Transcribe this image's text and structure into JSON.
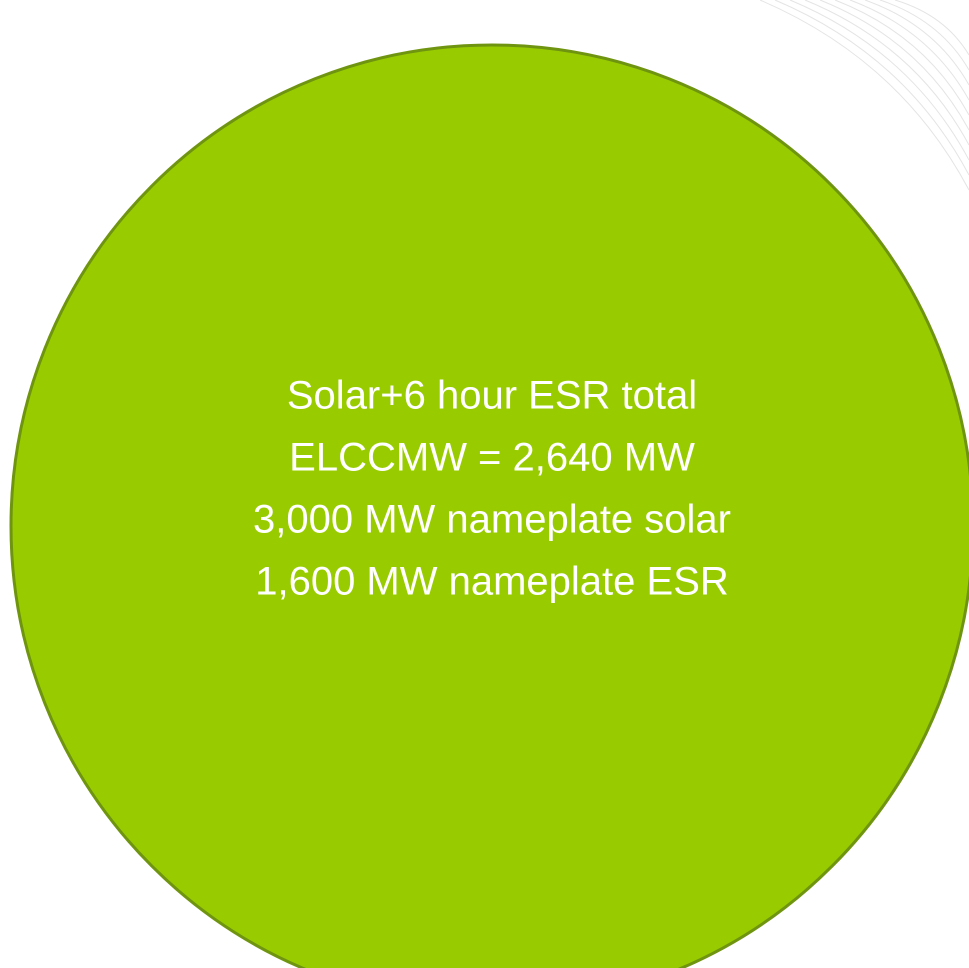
{
  "text": {
    "lines": [
      "Solar+6 hour ESR total",
      "ELCCMW = 2,640 MW",
      "3,000 MW nameplate solar",
      "1,600 MW nameplate ESR"
    ]
  }
}
